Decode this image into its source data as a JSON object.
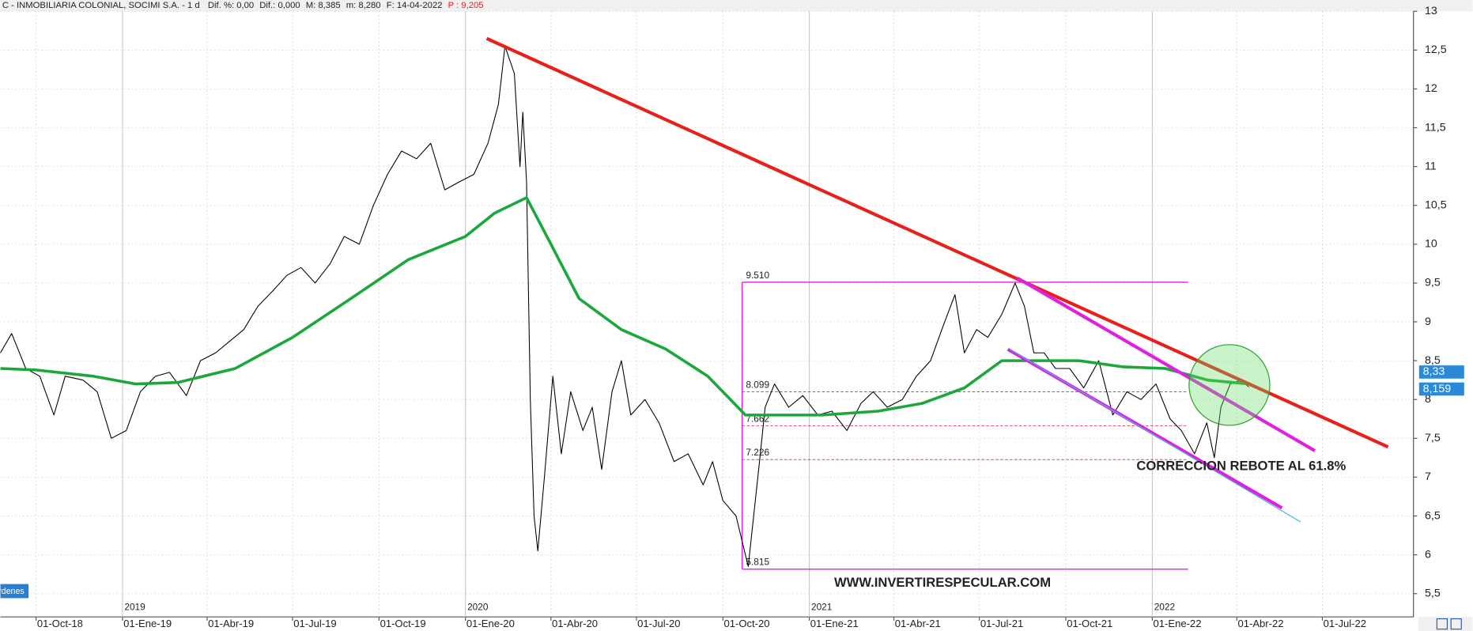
{
  "chart_data": {
    "type": "line",
    "title": "C - INMOBILIARIA COLONIAL, SOCIMI S.A. -  1 d",
    "stats": [
      "Dif. %: 0,00",
      "Dif.: 0,000",
      "M: 8,385",
      "m: 8,280",
      "F: 14-04-2022"
    ],
    "stat_highlight": "P : 9,205",
    "annotations": [
      "CORRECCION REBOTE AL 61.8%",
      "WWW.INVERTIRESPECULAR.COM"
    ],
    "button": "rdenes",
    "xlim": [
      "2018-08-24",
      "2022-10-06"
    ],
    "ylim": [
      5.2,
      13
    ],
    "grid": true,
    "xticks": [
      {
        "value": "2018-10-01",
        "label": "01-Oct-18"
      },
      {
        "value": "2019-01-01",
        "label": "01-Ene-19"
      },
      {
        "value": "2019-04-01",
        "label": "01-Abr-19"
      },
      {
        "value": "2019-07-01",
        "label": "01-Jul-19"
      },
      {
        "value": "2019-10-01",
        "label": "01-Oct-19"
      },
      {
        "value": "2020-01-01",
        "label": "01-Ene-20"
      },
      {
        "value": "2020-04-01",
        "label": "01-Abr-20"
      },
      {
        "value": "2020-07-01",
        "label": "01-Jul-20"
      },
      {
        "value": "2020-10-01",
        "label": "01-Oct-20"
      },
      {
        "value": "2021-01-01",
        "label": "01-Ene-21"
      },
      {
        "value": "2021-04-01",
        "label": "01-Abr-21"
      },
      {
        "value": "2021-07-01",
        "label": "01-Jul-21"
      },
      {
        "value": "2021-10-01",
        "label": "01-Oct-21"
      },
      {
        "value": "2022-01-01",
        "label": "01-Ene-22"
      },
      {
        "value": "2022-04-01",
        "label": "01-Abr-22"
      },
      {
        "value": "2022-07-01",
        "label": "01-Jul-22"
      }
    ],
    "year_ticks": [
      {
        "value": "2019-01-01",
        "label": "2019"
      },
      {
        "value": "2020-01-01",
        "label": "2020"
      },
      {
        "value": "2021-01-01",
        "label": "2021"
      },
      {
        "value": "2022-01-01",
        "label": "2022"
      }
    ],
    "yticks": [
      {
        "value": 5.5,
        "label": "5,5"
      },
      6,
      {
        "value": 6.5,
        "label": "6,5"
      },
      7,
      {
        "value": 7.5,
        "label": "7,5"
      },
      8,
      {
        "value": 8.5,
        "label": "8,5"
      },
      9,
      {
        "value": 9.5,
        "label": "9,5"
      },
      10,
      {
        "value": 10.5,
        "label": "10,5"
      },
      11,
      {
        "value": 11.5,
        "label": "11,5"
      },
      12,
      {
        "value": 12.5,
        "label": "12,5"
      },
      13
    ],
    "last_labels": [
      {
        "value": 8.33,
        "label": "8,33"
      },
      {
        "value": 8.159,
        "label": "8,159"
      }
    ],
    "fib_levels": [
      {
        "value": 9.51,
        "label": "9.510"
      },
      {
        "value": 8.099,
        "label": "8.099"
      },
      {
        "value": 7.662,
        "label": "7.662"
      },
      {
        "value": 7.226,
        "label": "7.226"
      },
      {
        "value": 5.815,
        "label": "5.815"
      }
    ],
    "series": [
      {
        "color": "#000000",
        "width": 0.9,
        "x": [
          "2018-08-24",
          "2018-09-05",
          "2018-09-20",
          "2018-10-05",
          "2018-10-20",
          "2018-11-01",
          "2018-11-20",
          "2018-12-05",
          "2018-12-20",
          "2019-01-05",
          "2019-01-20",
          "2019-02-05",
          "2019-02-20",
          "2019-03-10",
          "2019-03-25",
          "2019-04-10",
          "2019-04-25",
          "2019-05-10",
          "2019-05-25",
          "2019-06-10",
          "2019-06-25",
          "2019-07-10",
          "2019-07-25",
          "2019-08-10",
          "2019-08-25",
          "2019-09-10",
          "2019-09-25",
          "2019-10-10",
          "2019-10-25",
          "2019-11-10",
          "2019-11-25",
          "2019-12-10",
          "2019-12-25",
          "2020-01-10",
          "2020-01-25",
          "2020-02-05",
          "2020-02-12",
          "2020-02-22",
          "2020-02-28",
          "2020-03-02",
          "2020-03-06",
          "2020-03-10",
          "2020-03-14",
          "2020-03-18",
          "2020-03-25",
          "2020-04-03",
          "2020-04-12",
          "2020-04-22",
          "2020-05-05",
          "2020-05-15",
          "2020-05-25",
          "2020-06-05",
          "2020-06-15",
          "2020-06-25",
          "2020-07-10",
          "2020-07-25",
          "2020-08-10",
          "2020-08-25",
          "2020-09-10",
          "2020-09-20",
          "2020-10-01",
          "2020-10-15",
          "2020-10-28",
          "2020-11-09",
          "2020-11-15",
          "2020-11-25",
          "2020-12-10",
          "2020-12-25",
          "2021-01-10",
          "2021-01-25",
          "2021-02-10",
          "2021-02-25",
          "2021-03-10",
          "2021-03-25",
          "2021-04-10",
          "2021-04-25",
          "2021-05-10",
          "2021-05-25",
          "2021-06-05",
          "2021-06-15",
          "2021-06-28",
          "2021-07-10",
          "2021-07-25",
          "2021-08-08",
          "2021-08-18",
          "2021-08-28",
          "2021-09-08",
          "2021-09-20",
          "2021-10-05",
          "2021-10-20",
          "2021-11-05",
          "2021-11-20",
          "2021-12-05",
          "2021-12-20",
          "2022-01-05",
          "2022-01-20",
          "2022-02-01",
          "2022-02-15",
          "2022-02-28",
          "2022-03-08",
          "2022-03-15",
          "2022-03-25",
          "2022-04-05",
          "2022-04-14"
        ],
        "values": [
          8.6,
          8.85,
          8.4,
          8.3,
          7.8,
          8.3,
          8.25,
          8.1,
          7.5,
          7.6,
          8.1,
          8.3,
          8.35,
          8.05,
          8.5,
          8.6,
          8.75,
          8.9,
          9.2,
          9.4,
          9.6,
          9.7,
          9.5,
          9.75,
          10.1,
          10.0,
          10.5,
          10.9,
          11.2,
          11.1,
          11.3,
          10.7,
          10.8,
          10.9,
          11.3,
          11.8,
          12.55,
          12.2,
          11.0,
          11.7,
          10.8,
          8.0,
          6.5,
          6.05,
          7.0,
          8.3,
          7.3,
          8.1,
          7.6,
          7.9,
          7.1,
          8.1,
          8.5,
          7.8,
          8.0,
          7.7,
          7.2,
          7.3,
          6.9,
          7.2,
          6.7,
          6.5,
          5.85,
          7.2,
          7.9,
          8.2,
          7.9,
          8.05,
          7.8,
          7.85,
          7.6,
          7.95,
          8.1,
          7.9,
          8.0,
          8.3,
          8.5,
          9.0,
          9.35,
          8.6,
          8.9,
          8.8,
          9.1,
          9.5,
          9.2,
          8.6,
          8.6,
          8.4,
          8.4,
          8.15,
          8.5,
          7.8,
          8.1,
          8.0,
          8.2,
          7.75,
          7.6,
          7.3,
          7.7,
          7.25,
          7.9,
          8.2,
          8.25,
          8.16
        ]
      },
      {
        "color": "#1aa83a",
        "width": 3,
        "x": [
          "2018-08-24",
          "2018-10-01",
          "2018-12-01",
          "2019-01-15",
          "2019-03-01",
          "2019-05-01",
          "2019-07-01",
          "2019-09-01",
          "2019-11-01",
          "2020-01-01",
          "2020-02-01",
          "2020-03-06",
          "2020-04-01",
          "2020-05-01",
          "2020-06-15",
          "2020-08-01",
          "2020-09-15",
          "2020-10-25",
          "2020-11-15",
          "2021-01-15",
          "2021-03-15",
          "2021-05-01",
          "2021-06-15",
          "2021-07-25",
          "2021-09-01",
          "2021-10-15",
          "2021-12-01",
          "2022-01-15",
          "2022-03-01",
          "2022-04-14"
        ],
        "values": [
          8.4,
          8.38,
          8.3,
          8.2,
          8.22,
          8.4,
          8.8,
          9.3,
          9.8,
          10.1,
          10.4,
          10.6,
          10.0,
          9.3,
          8.9,
          8.65,
          8.3,
          7.8,
          7.8,
          7.8,
          7.85,
          7.95,
          8.15,
          8.5,
          8.5,
          8.5,
          8.42,
          8.4,
          8.25,
          8.2
        ]
      }
    ]
  }
}
